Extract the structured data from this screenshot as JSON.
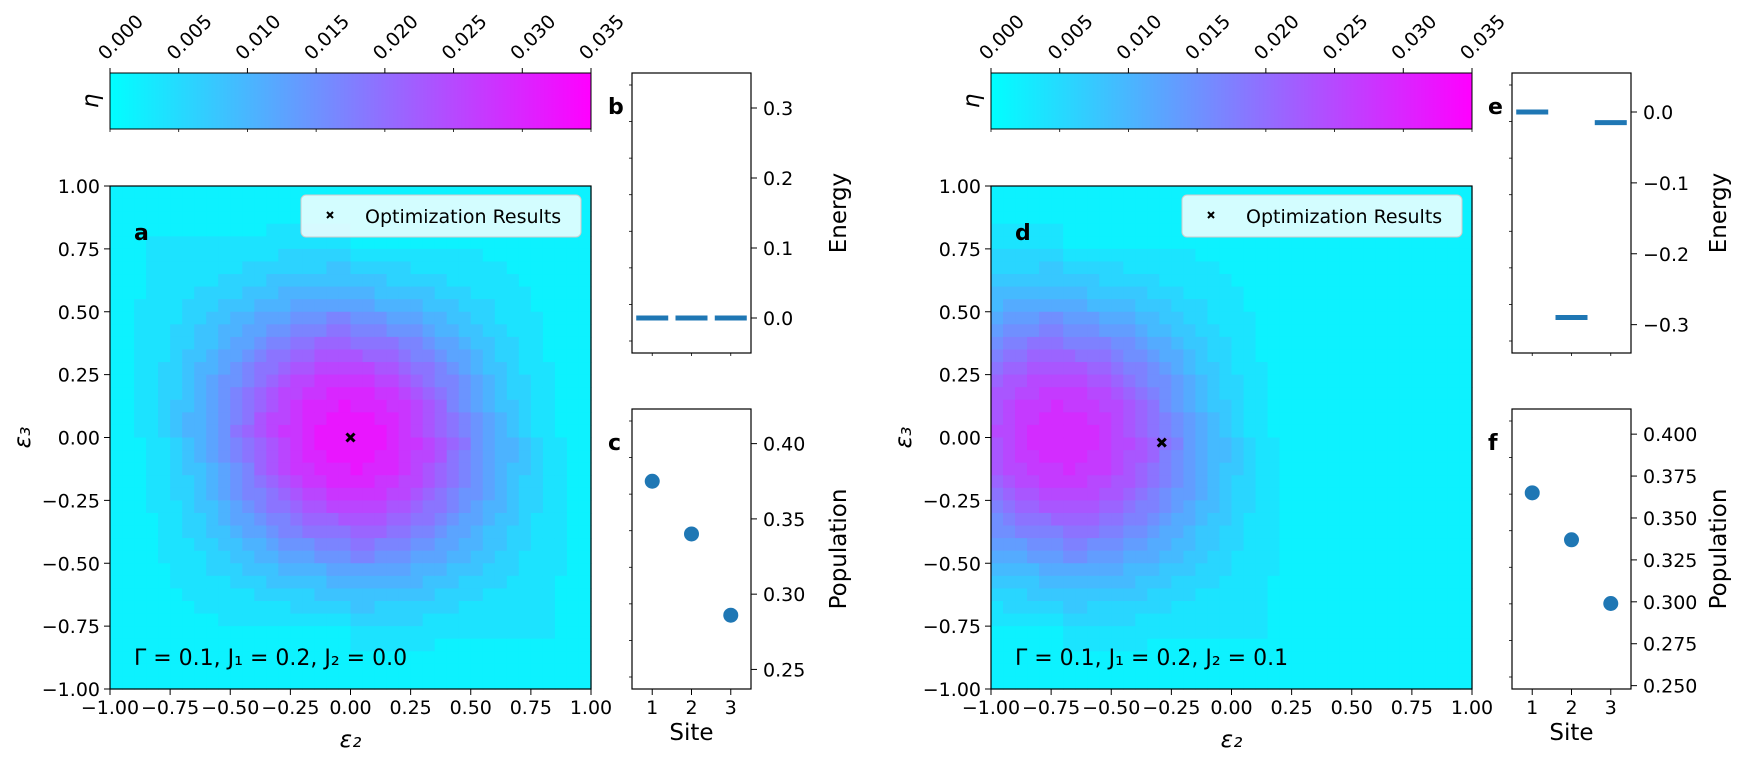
{
  "colormap": {
    "start": "#00ffff",
    "end": "#ff00ff",
    "label": "η"
  },
  "chart_data": [
    {
      "type": "heatmap",
      "panel": "a",
      "xlabel": "ε₂",
      "ylabel": "ε₃",
      "xlim": [
        -1.0,
        1.0
      ],
      "ylim": [
        -1.0,
        1.0
      ],
      "xticks": [
        "−1.00",
        "−0.75",
        "−0.50",
        "−0.25",
        "0.00",
        "0.25",
        "0.50",
        "0.75",
        "1.00"
      ],
      "yticks": [
        "−1.00",
        "−0.75",
        "−0.50",
        "−0.25",
        "0.00",
        "0.25",
        "0.50",
        "0.75",
        "1.00"
      ],
      "colorbar": {
        "label": "η",
        "range": [
          0.0,
          0.035
        ],
        "ticks": [
          "0.000",
          "0.005",
          "0.010",
          "0.015",
          "0.020",
          "0.025",
          "0.030",
          "0.035"
        ]
      },
      "peak": {
        "x": 0.0,
        "y": 0.0,
        "value": 0.032
      },
      "optimum": {
        "x": 0.0,
        "y": 0.0
      },
      "legend": "Optimization Results",
      "legend_position": "top-right",
      "annotation": "Γ = 0.1, J₁ = 0.2, J₂ = 0.0"
    },
    {
      "type": "line",
      "panel": "b",
      "ylabel": "Energy",
      "ylim": [
        -0.05,
        0.35
      ],
      "yticks": [
        "0.0",
        "0.1",
        "0.2",
        "0.3"
      ],
      "sites": [
        1,
        2,
        3
      ],
      "values": [
        0.0,
        0.0,
        0.0
      ]
    },
    {
      "type": "scatter",
      "panel": "c",
      "xlabel": "Site",
      "ylabel": "Population",
      "ylim": [
        0.237,
        0.423
      ],
      "xticks": [
        "1",
        "2",
        "3"
      ],
      "yticks": [
        "0.25",
        "0.30",
        "0.35",
        "0.40"
      ],
      "x": [
        1,
        2,
        3
      ],
      "values": [
        0.375,
        0.34,
        0.286
      ]
    },
    {
      "type": "heatmap",
      "panel": "d",
      "xlabel": "ε₂",
      "ylabel": "ε₃",
      "xlim": [
        -1.0,
        1.0
      ],
      "ylim": [
        -1.0,
        1.0
      ],
      "xticks": [
        "−1.00",
        "−0.75",
        "−0.50",
        "−0.25",
        "0.00",
        "0.25",
        "0.50",
        "0.75",
        "1.00"
      ],
      "yticks": [
        "−1.00",
        "−0.75",
        "−0.50",
        "−0.25",
        "0.00",
        "0.25",
        "0.50",
        "0.75",
        "1.00"
      ],
      "colorbar": {
        "label": "η",
        "range": [
          0.0,
          0.035
        ],
        "ticks": [
          "0.000",
          "0.005",
          "0.010",
          "0.015",
          "0.020",
          "0.025",
          "0.030",
          "0.035"
        ]
      },
      "peak": {
        "x": -0.7,
        "y": 0.0,
        "value": 0.029
      },
      "optimum": {
        "x": -0.29,
        "y": -0.02
      },
      "legend": "Optimization Results",
      "legend_position": "top-right",
      "annotation": "Γ = 0.1, J₁ = 0.2, J₂ = 0.1"
    },
    {
      "type": "line",
      "panel": "e",
      "ylabel": "Energy",
      "ylim": [
        -0.34,
        0.055
      ],
      "yticks": [
        "0.0",
        "−0.1",
        "−0.2",
        "−0.3"
      ],
      "sites": [
        1,
        2,
        3
      ],
      "values": [
        0.0,
        -0.29,
        -0.015
      ]
    },
    {
      "type": "scatter",
      "panel": "f",
      "xlabel": "Site",
      "ylabel": "Population",
      "ylim": [
        0.248,
        0.415
      ],
      "xticks": [
        "1",
        "2",
        "3"
      ],
      "yticks": [
        "0.250",
        "0.275",
        "0.300",
        "0.325",
        "0.350",
        "0.375",
        "0.400"
      ],
      "x": [
        1,
        2,
        3
      ],
      "values": [
        0.365,
        0.337,
        0.299
      ]
    }
  ]
}
